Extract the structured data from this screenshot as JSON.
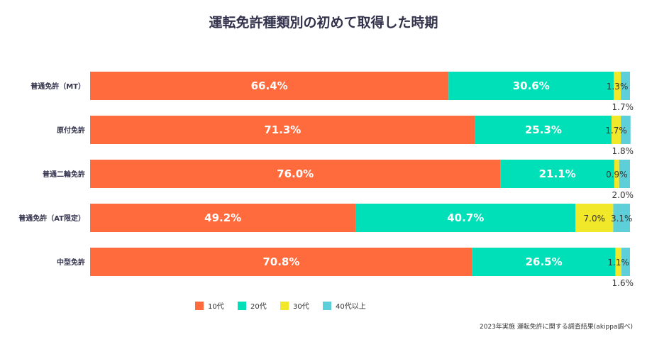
{
  "chart_data": {
    "type": "bar",
    "orientation": "horizontal",
    "stacked": true,
    "normalized": true,
    "title": "運転免許種類別の初めて取得した時期",
    "source_note": "2023年実施 運転免許に関する調査結果(akippa調べ)",
    "categories": [
      "普通免許（MT）",
      "原付免許",
      "普通二輪免許",
      "普通免許（AT限定）",
      "中型免許"
    ],
    "series": [
      {
        "name": "10代",
        "color": "#ff6b3d",
        "values": [
          66.4,
          71.3,
          76.0,
          49.2,
          70.8
        ],
        "labels": [
          "66.4%",
          "71.3%",
          "76.0%",
          "49.2%",
          "70.8%"
        ]
      },
      {
        "name": "20代",
        "color": "#00e0b8",
        "values": [
          30.6,
          25.3,
          21.1,
          40.7,
          26.5
        ],
        "labels": [
          "30.6%",
          "25.3%",
          "21.1%",
          "40.7%",
          "26.5%"
        ]
      },
      {
        "name": "30代",
        "color": "#f2e82a",
        "values": [
          1.3,
          1.7,
          0.9,
          7.0,
          1.1
        ],
        "labels": [
          "1.3%",
          "1.7%",
          "0.9%",
          "7.0%",
          "1.1%"
        ]
      },
      {
        "name": "40代以上",
        "color": "#5ccfd9",
        "values": [
          1.7,
          1.8,
          2.0,
          3.1,
          1.6
        ],
        "labels": [
          "1.7%",
          "1.8%",
          "2.0%",
          "3.1%",
          "1.6%"
        ]
      }
    ],
    "xlim": [
      0,
      100
    ],
    "legend_position": "bottom-left"
  }
}
